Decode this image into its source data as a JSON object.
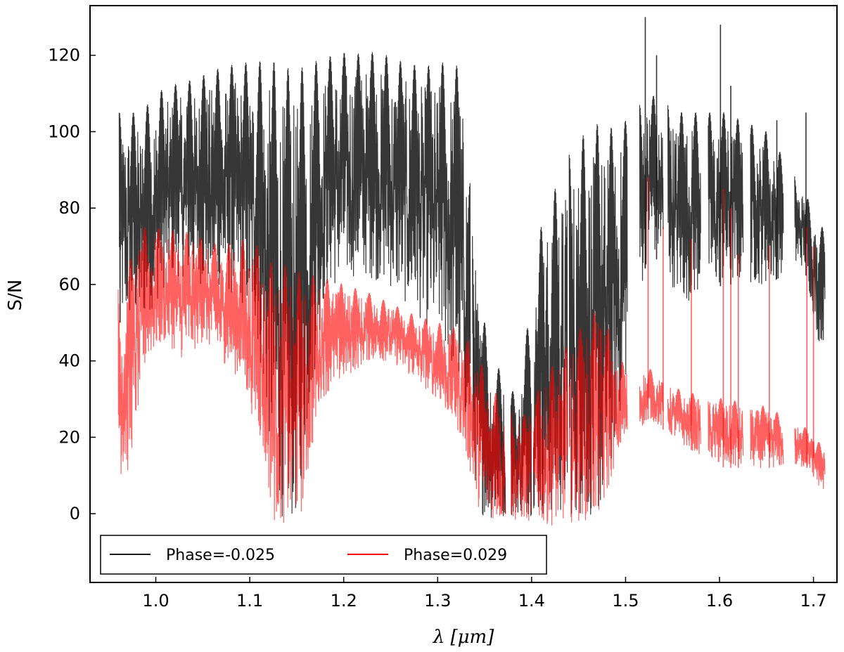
{
  "chart_data": {
    "type": "line",
    "title": "",
    "xlabel": "λ [μm]",
    "ylabel": "S/N",
    "xlim": [
      0.93,
      1.725
    ],
    "ylim": [
      -18,
      133
    ],
    "xticks": [
      1.0,
      1.1,
      1.2,
      1.3,
      1.4,
      1.5,
      1.6,
      1.7
    ],
    "xtick_labels": [
      "1.0",
      "1.1",
      "1.2",
      "1.3",
      "1.4",
      "1.5",
      "1.6",
      "1.7"
    ],
    "yticks": [
      0,
      20,
      40,
      60,
      80,
      100,
      120
    ],
    "ytick_labels": [
      "0",
      "20",
      "40",
      "60",
      "80",
      "100",
      "120"
    ],
    "grid": false,
    "legend_position": "bottom-left",
    "series": [
      {
        "name": "Phase=-0.025",
        "color": "#1a1a1a",
        "opacity": 0.88,
        "segments": [
          [
            0.961,
            1.115
          ],
          [
            1.115,
            1.335
          ],
          [
            1.337,
            1.368
          ],
          [
            1.368,
            1.372
          ],
          [
            1.378,
            1.4
          ],
          [
            1.402,
            1.438
          ],
          [
            1.44,
            1.502
          ],
          [
            1.515,
            1.54
          ],
          [
            1.545,
            1.58
          ],
          [
            1.588,
            1.625
          ],
          [
            1.633,
            1.668
          ],
          [
            1.68,
            1.712
          ]
        ],
        "bands": [
          {
            "x": 0.985,
            "top": 105,
            "bottom": 50
          },
          {
            "x": 1.0,
            "top": 110,
            "bottom": 55
          },
          {
            "x": 1.015,
            "top": 112,
            "bottom": 62
          },
          {
            "x": 1.03,
            "top": 113,
            "bottom": 62
          },
          {
            "x": 1.045,
            "top": 114,
            "bottom": 60
          },
          {
            "x": 1.06,
            "top": 116,
            "bottom": 60
          },
          {
            "x": 1.075,
            "top": 117,
            "bottom": 58
          },
          {
            "x": 1.09,
            "top": 118,
            "bottom": 55
          },
          {
            "x": 1.105,
            "top": 118,
            "bottom": 50
          },
          {
            "x": 1.12,
            "top": 119,
            "bottom": 20
          },
          {
            "x": 1.135,
            "top": 117,
            "bottom": -2
          },
          {
            "x": 1.15,
            "top": 116,
            "bottom": -2
          },
          {
            "x": 1.165,
            "top": 118,
            "bottom": 30
          },
          {
            "x": 1.18,
            "top": 119,
            "bottom": 58
          },
          {
            "x": 1.195,
            "top": 121,
            "bottom": 60
          },
          {
            "x": 1.21,
            "top": 120,
            "bottom": 62
          },
          {
            "x": 1.225,
            "top": 121,
            "bottom": 62
          },
          {
            "x": 1.245,
            "top": 120,
            "bottom": 60
          },
          {
            "x": 1.265,
            "top": 118,
            "bottom": 55
          },
          {
            "x": 1.285,
            "top": 117,
            "bottom": 50
          },
          {
            "x": 1.305,
            "top": 118,
            "bottom": 45
          },
          {
            "x": 1.325,
            "top": 117,
            "bottom": 30
          },
          {
            "x": 1.345,
            "top": 55,
            "bottom": 0
          },
          {
            "x": 1.36,
            "top": 40,
            "bottom": -2
          },
          {
            "x": 1.385,
            "top": 30,
            "bottom": 0
          },
          {
            "x": 1.41,
            "top": 75,
            "bottom": -1
          },
          {
            "x": 1.425,
            "top": 85,
            "bottom": -1
          },
          {
            "x": 1.445,
            "top": 97,
            "bottom": -1
          },
          {
            "x": 1.46,
            "top": 100,
            "bottom": -1
          },
          {
            "x": 1.475,
            "top": 103,
            "bottom": -1
          },
          {
            "x": 1.49,
            "top": 100,
            "bottom": 20
          },
          {
            "x": 1.525,
            "top": 110,
            "bottom": 70
          },
          {
            "x": 1.56,
            "top": 105,
            "bottom": 55
          },
          {
            "x": 1.605,
            "top": 105,
            "bottom": 60
          },
          {
            "x": 1.65,
            "top": 100,
            "bottom": 60
          },
          {
            "x": 1.69,
            "top": 85,
            "bottom": 65
          },
          {
            "x": 1.705,
            "top": 75,
            "bottom": 45
          }
        ],
        "peaks": [
          [
            0.962,
            74
          ],
          [
            1.521,
            130
          ],
          [
            1.533,
            120
          ],
          [
            1.601,
            128
          ],
          [
            1.612,
            112
          ],
          [
            1.661,
            103
          ],
          [
            1.692,
            105
          ]
        ]
      },
      {
        "name": "Phase=0.029",
        "color": "#ff0000",
        "opacity": 0.62,
        "segments": [
          [
            0.96,
            1.115
          ],
          [
            1.115,
            1.165
          ],
          [
            1.165,
            1.372
          ],
          [
            1.378,
            1.4
          ],
          [
            1.402,
            1.438
          ],
          [
            1.44,
            1.502
          ],
          [
            1.515,
            1.54
          ],
          [
            1.545,
            1.58
          ],
          [
            1.588,
            1.625
          ],
          [
            1.633,
            1.668
          ],
          [
            1.68,
            1.712
          ]
        ],
        "bands": [
          {
            "x": 0.97,
            "top": 65,
            "bottom": 10
          },
          {
            "x": 0.99,
            "top": 76,
            "bottom": 40
          },
          {
            "x": 1.01,
            "top": 74,
            "bottom": 45
          },
          {
            "x": 1.03,
            "top": 74,
            "bottom": 40
          },
          {
            "x": 1.05,
            "top": 72,
            "bottom": 45
          },
          {
            "x": 1.07,
            "top": 70,
            "bottom": 40
          },
          {
            "x": 1.09,
            "top": 72,
            "bottom": 35
          },
          {
            "x": 1.11,
            "top": 70,
            "bottom": 20
          },
          {
            "x": 1.125,
            "top": 65,
            "bottom": -2
          },
          {
            "x": 1.14,
            "top": 65,
            "bottom": -3
          },
          {
            "x": 1.155,
            "top": 63,
            "bottom": 0
          },
          {
            "x": 1.175,
            "top": 62,
            "bottom": 30
          },
          {
            "x": 1.2,
            "top": 60,
            "bottom": 35
          },
          {
            "x": 1.225,
            "top": 58,
            "bottom": 40
          },
          {
            "x": 1.25,
            "top": 55,
            "bottom": 40
          },
          {
            "x": 1.275,
            "top": 52,
            "bottom": 35
          },
          {
            "x": 1.3,
            "top": 50,
            "bottom": 30
          },
          {
            "x": 1.325,
            "top": 48,
            "bottom": 20
          },
          {
            "x": 1.345,
            "top": 40,
            "bottom": 0
          },
          {
            "x": 1.365,
            "top": 30,
            "bottom": -2
          },
          {
            "x": 1.39,
            "top": 25,
            "bottom": -2
          },
          {
            "x": 1.42,
            "top": 38,
            "bottom": -3
          },
          {
            "x": 1.45,
            "top": 48,
            "bottom": -2
          },
          {
            "x": 1.475,
            "top": 55,
            "bottom": -1
          },
          {
            "x": 1.49,
            "top": 40,
            "bottom": 15
          },
          {
            "x": 1.525,
            "top": 38,
            "bottom": 25
          },
          {
            "x": 1.56,
            "top": 32,
            "bottom": 18
          },
          {
            "x": 1.605,
            "top": 30,
            "bottom": 12
          },
          {
            "x": 1.65,
            "top": 28,
            "bottom": 12
          },
          {
            "x": 1.695,
            "top": 22,
            "bottom": 12
          },
          {
            "x": 1.708,
            "top": 18,
            "bottom": 6
          }
        ],
        "peaks": [
          [
            1.524,
            88
          ],
          [
            1.54,
            75
          ],
          [
            1.57,
            72
          ],
          [
            1.604,
            85
          ],
          [
            1.612,
            80
          ],
          [
            1.62,
            68
          ],
          [
            1.653,
            70
          ],
          [
            1.693,
            75
          ],
          [
            1.7,
            70
          ]
        ]
      }
    ]
  }
}
